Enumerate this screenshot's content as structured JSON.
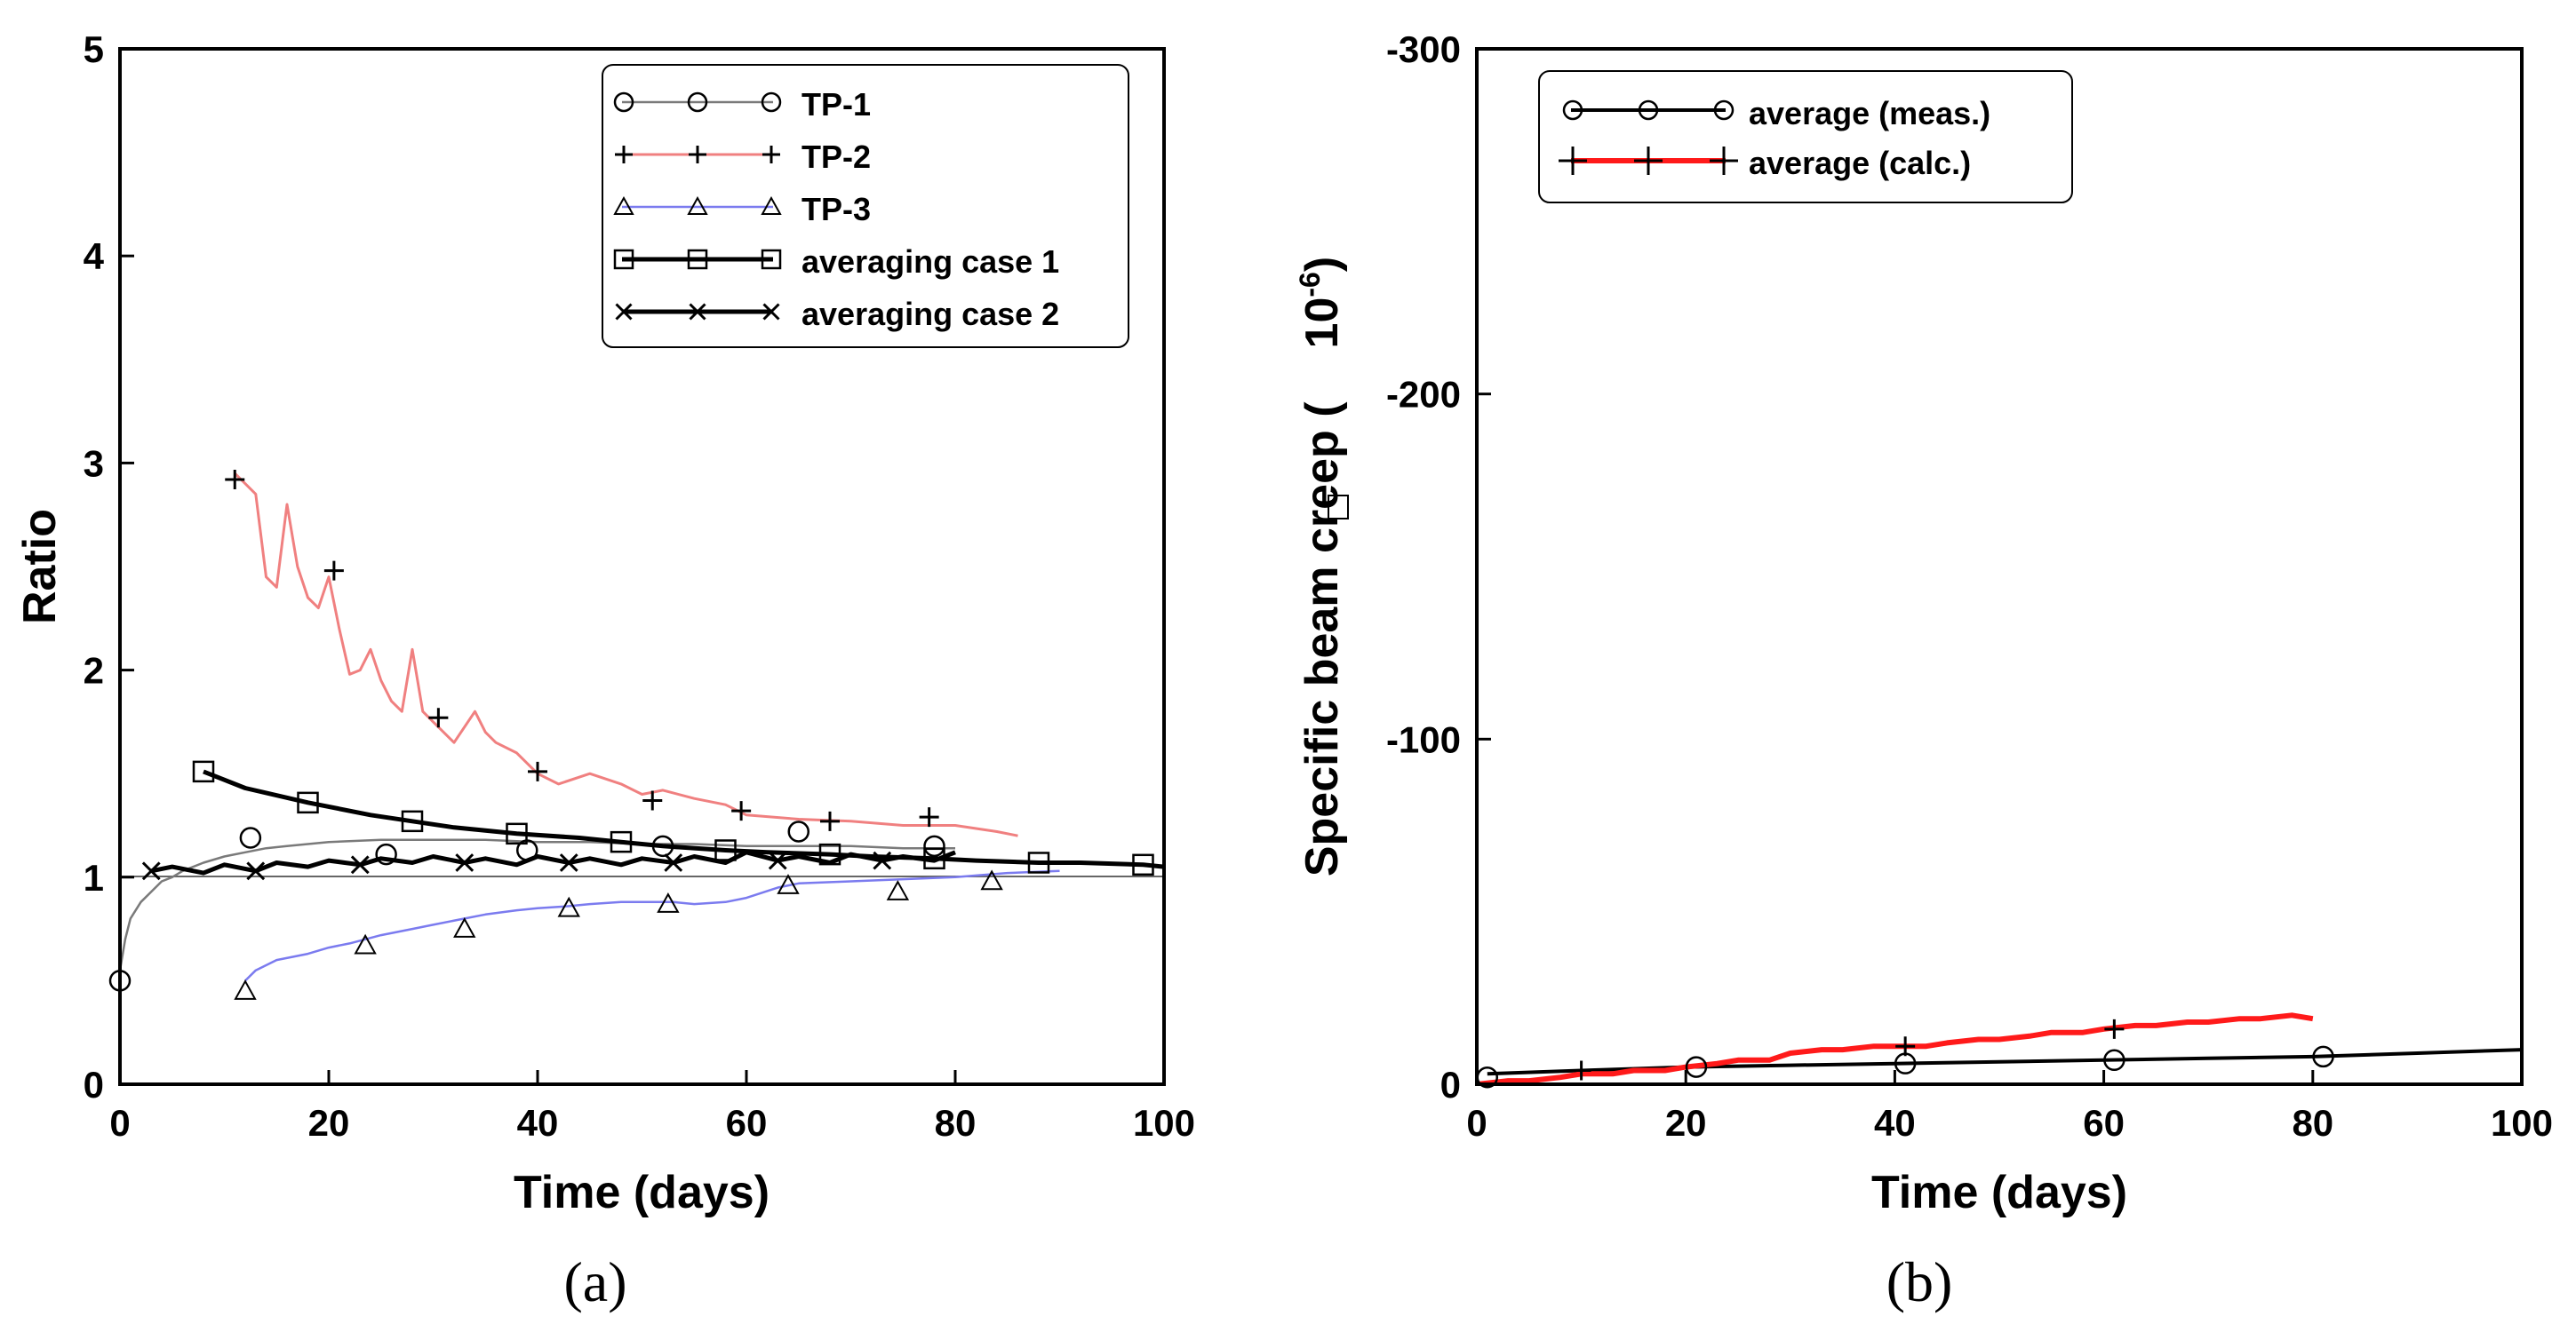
{
  "chart_data": [
    {
      "type": "line",
      "panel_label": "(a)",
      "xlabel": "Time (days)",
      "ylabel": "Ratio",
      "xlim": [
        0,
        100
      ],
      "ylim": [
        0,
        5
      ],
      "xticks": [
        "0",
        "20",
        "40",
        "60",
        "80",
        "100"
      ],
      "yticks": [
        "0",
        "1",
        "2",
        "3",
        "4",
        "5"
      ],
      "reference_line": 1,
      "legend_position": "top-right",
      "series": [
        {
          "name": "TP-1",
          "color": "#7a7a7a",
          "marker": "circle",
          "x": [
            0,
            0.5,
            1,
            2,
            3,
            4,
            5,
            6,
            8,
            10,
            12,
            14,
            16,
            18,
            20,
            25,
            30,
            35,
            40,
            45,
            50,
            55,
            60,
            65,
            70,
            75,
            80
          ],
          "y": [
            0.55,
            0.7,
            0.8,
            0.88,
            0.93,
            0.98,
            1.0,
            1.03,
            1.07,
            1.1,
            1.12,
            1.14,
            1.15,
            1.16,
            1.17,
            1.18,
            1.18,
            1.18,
            1.17,
            1.17,
            1.16,
            1.16,
            1.15,
            1.15,
            1.15,
            1.14,
            1.14
          ],
          "marker_x": [
            0,
            12.5,
            25.5,
            39,
            52,
            65,
            78
          ],
          "marker_y": [
            0.5,
            1.19,
            1.11,
            1.13,
            1.15,
            1.22,
            1.15
          ]
        },
        {
          "name": "TP-2",
          "color": "#f08080",
          "marker": "plus",
          "x": [
            11,
            12,
            13,
            14,
            15,
            16,
            17,
            18,
            19,
            20,
            21,
            22,
            23,
            24,
            25,
            26,
            27,
            28,
            29,
            30,
            32,
            34,
            35,
            36,
            38,
            40,
            42,
            45,
            48,
            50,
            52,
            55,
            58,
            60,
            65,
            70,
            75,
            80,
            84,
            86
          ],
          "y": [
            2.95,
            2.9,
            2.85,
            2.45,
            2.4,
            2.8,
            2.5,
            2.35,
            2.3,
            2.45,
            2.2,
            1.98,
            2.0,
            2.1,
            1.95,
            1.85,
            1.8,
            2.1,
            1.8,
            1.75,
            1.65,
            1.8,
            1.7,
            1.65,
            1.6,
            1.5,
            1.45,
            1.5,
            1.45,
            1.4,
            1.42,
            1.38,
            1.35,
            1.3,
            1.28,
            1.27,
            1.25,
            1.25,
            1.22,
            1.2
          ],
          "marker_x": [
            11,
            20.5,
            30.5,
            40,
            51,
            59.5,
            68,
            77.5
          ],
          "marker_y": [
            2.92,
            2.48,
            1.77,
            1.51,
            1.37,
            1.32,
            1.27,
            1.29
          ]
        },
        {
          "name": "TP-3",
          "color": "#7b7bef",
          "marker": "triangle",
          "x": [
            12,
            13,
            15,
            18,
            20,
            22,
            25,
            28,
            30,
            33,
            35,
            38,
            40,
            43,
            45,
            48,
            50,
            53,
            55,
            58,
            60,
            63,
            65,
            70,
            75,
            80,
            85,
            90
          ],
          "y": [
            0.5,
            0.55,
            0.6,
            0.63,
            0.66,
            0.68,
            0.72,
            0.75,
            0.77,
            0.8,
            0.82,
            0.84,
            0.85,
            0.86,
            0.87,
            0.88,
            0.88,
            0.88,
            0.87,
            0.88,
            0.9,
            0.95,
            0.97,
            0.98,
            0.99,
            1.0,
            1.02,
            1.03
          ],
          "marker_x": [
            12,
            23.5,
            33,
            43,
            52.5,
            64,
            74.5,
            83.5
          ],
          "marker_y": [
            0.45,
            0.67,
            0.75,
            0.85,
            0.87,
            0.96,
            0.93,
            0.98
          ]
        },
        {
          "name": "averaging case 1",
          "color": "#000000",
          "marker": "square",
          "x": [
            8,
            12,
            18,
            24,
            28,
            32,
            38,
            44,
            48,
            52,
            58,
            62,
            68,
            72,
            78,
            82,
            88,
            92,
            98,
            100
          ],
          "y": [
            1.51,
            1.43,
            1.36,
            1.3,
            1.27,
            1.24,
            1.21,
            1.19,
            1.17,
            1.15,
            1.13,
            1.12,
            1.11,
            1.1,
            1.09,
            1.08,
            1.07,
            1.07,
            1.06,
            1.05
          ],
          "marker_x": [
            8,
            18,
            28,
            38,
            48,
            58,
            68,
            78,
            88,
            98
          ],
          "marker_y": [
            1.51,
            1.36,
            1.27,
            1.21,
            1.17,
            1.13,
            1.11,
            1.09,
            1.07,
            1.06
          ]
        },
        {
          "name": "averaging case 2",
          "color": "#000000",
          "marker": "x",
          "x": [
            3,
            5,
            8,
            10,
            13,
            15,
            18,
            20,
            23,
            25,
            28,
            30,
            33,
            35,
            38,
            40,
            43,
            45,
            48,
            50,
            53,
            55,
            58,
            60,
            63,
            65,
            68,
            70,
            73,
            75,
            78,
            80
          ],
          "y": [
            1.03,
            1.05,
            1.02,
            1.06,
            1.03,
            1.07,
            1.05,
            1.08,
            1.06,
            1.09,
            1.07,
            1.1,
            1.07,
            1.09,
            1.06,
            1.1,
            1.07,
            1.09,
            1.06,
            1.09,
            1.07,
            1.1,
            1.07,
            1.12,
            1.08,
            1.1,
            1.07,
            1.11,
            1.08,
            1.1,
            1.08,
            1.12
          ],
          "marker_x": [
            3,
            13,
            23,
            33,
            43,
            53,
            63,
            73
          ],
          "marker_y": [
            1.03,
            1.03,
            1.06,
            1.07,
            1.07,
            1.07,
            1.08,
            1.08
          ]
        }
      ]
    },
    {
      "type": "line",
      "panel_label": "(b)",
      "xlabel": "Time (days)",
      "ylabel_text": "Specific beam creep (",
      "ylabel_mult": "10",
      "ylabel_exp": "-6",
      "ylabel_close": ")",
      "xlim": [
        0,
        100
      ],
      "ylim": [
        0,
        -300
      ],
      "xticks": [
        "0",
        "20",
        "40",
        "60",
        "80",
        "100"
      ],
      "yticks": [
        "0",
        "-100",
        "-200",
        "-300"
      ],
      "legend_position": "top-left",
      "series": [
        {
          "name": "average (meas.)",
          "color": "#000000",
          "marker": "circle",
          "x": [
            1,
            10,
            20,
            30,
            40,
            50,
            60,
            70,
            80,
            90,
            100
          ],
          "y": [
            -3,
            -4,
            -5,
            -5.5,
            -6,
            -6.5,
            -7,
            -7.5,
            -8,
            -9,
            -10
          ],
          "marker_x": [
            1,
            21,
            41,
            61,
            81
          ],
          "marker_y": [
            -2,
            -5,
            -6,
            -7,
            -8
          ]
        },
        {
          "name": "average (calc.)",
          "color": "#ff1a1a",
          "marker": "plus",
          "x": [
            0,
            3,
            5,
            8,
            10,
            13,
            15,
            18,
            20,
            23,
            25,
            28,
            30,
            33,
            35,
            38,
            40,
            43,
            45,
            48,
            50,
            53,
            55,
            58,
            60,
            63,
            65,
            68,
            70,
            73,
            75,
            78,
            80
          ],
          "y": [
            0,
            -1,
            -1,
            -2,
            -3,
            -3,
            -4,
            -4,
            -5,
            -6,
            -7,
            -7,
            -9,
            -10,
            -10,
            -11,
            -11,
            -11,
            -12,
            -13,
            -13,
            -14,
            -15,
            -15,
            -16,
            -17,
            -17,
            -18,
            -18,
            -19,
            -19,
            -20,
            -19
          ],
          "marker_x": [
            10,
            41,
            61
          ],
          "marker_y": [
            -4,
            -11,
            -16
          ]
        }
      ]
    }
  ]
}
